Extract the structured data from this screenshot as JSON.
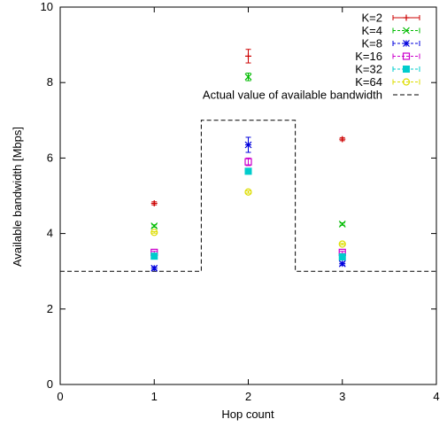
{
  "chart_data": {
    "type": "scatter",
    "xlabel": "Hop count",
    "ylabel": "Available bandwidth [Mbps]",
    "xlim": [
      0,
      4
    ],
    "ylim": [
      0,
      10
    ],
    "xticks": [
      "0",
      "1",
      "2",
      "3",
      "4"
    ],
    "yticks": [
      "0",
      "2",
      "4",
      "6",
      "8",
      "10"
    ],
    "grid": false,
    "legend_position": "top-right",
    "series": [
      {
        "name": "K=2",
        "color": "#cc0000",
        "marker": "plus",
        "x": [
          1,
          2,
          3
        ],
        "y": [
          4.8,
          8.7,
          6.5
        ],
        "err": [
          0.04,
          0.18,
          0.04
        ]
      },
      {
        "name": "K=4",
        "color": "#00bb00",
        "marker": "cross",
        "x": [
          1,
          2,
          3
        ],
        "y": [
          4.2,
          8.15,
          4.25
        ],
        "err": [
          0.03,
          0.1,
          0.03
        ]
      },
      {
        "name": "K=8",
        "color": "#0000dd",
        "marker": "star",
        "x": [
          1,
          2,
          3
        ],
        "y": [
          3.08,
          6.35,
          3.2
        ],
        "err": [
          0.04,
          0.2,
          0.04
        ]
      },
      {
        "name": "K=16",
        "color": "#cc00cc",
        "marker": "square-open",
        "x": [
          1,
          2,
          3
        ],
        "y": [
          3.5,
          5.9,
          3.5
        ],
        "err": [
          0.03,
          0.1,
          0.03
        ]
      },
      {
        "name": "K=32",
        "color": "#00cccc",
        "marker": "square-filled",
        "x": [
          1,
          2,
          3
        ],
        "y": [
          3.4,
          5.65,
          3.38
        ],
        "err": [
          0.02,
          0.05,
          0.02
        ]
      },
      {
        "name": "K=64",
        "color": "#dddd00",
        "marker": "circle-open",
        "x": [
          1,
          2,
          3
        ],
        "y": [
          4.03,
          5.1,
          3.72
        ],
        "err": [
          0.02,
          0.03,
          0.02
        ]
      }
    ],
    "reference_line": {
      "name": "Actual value of available bandwidth",
      "color": "#000000",
      "style": "dashed",
      "x": [
        0,
        1.5,
        1.5,
        2.5,
        2.5,
        4
      ],
      "y": [
        3,
        3,
        7,
        7,
        3,
        3
      ]
    }
  }
}
